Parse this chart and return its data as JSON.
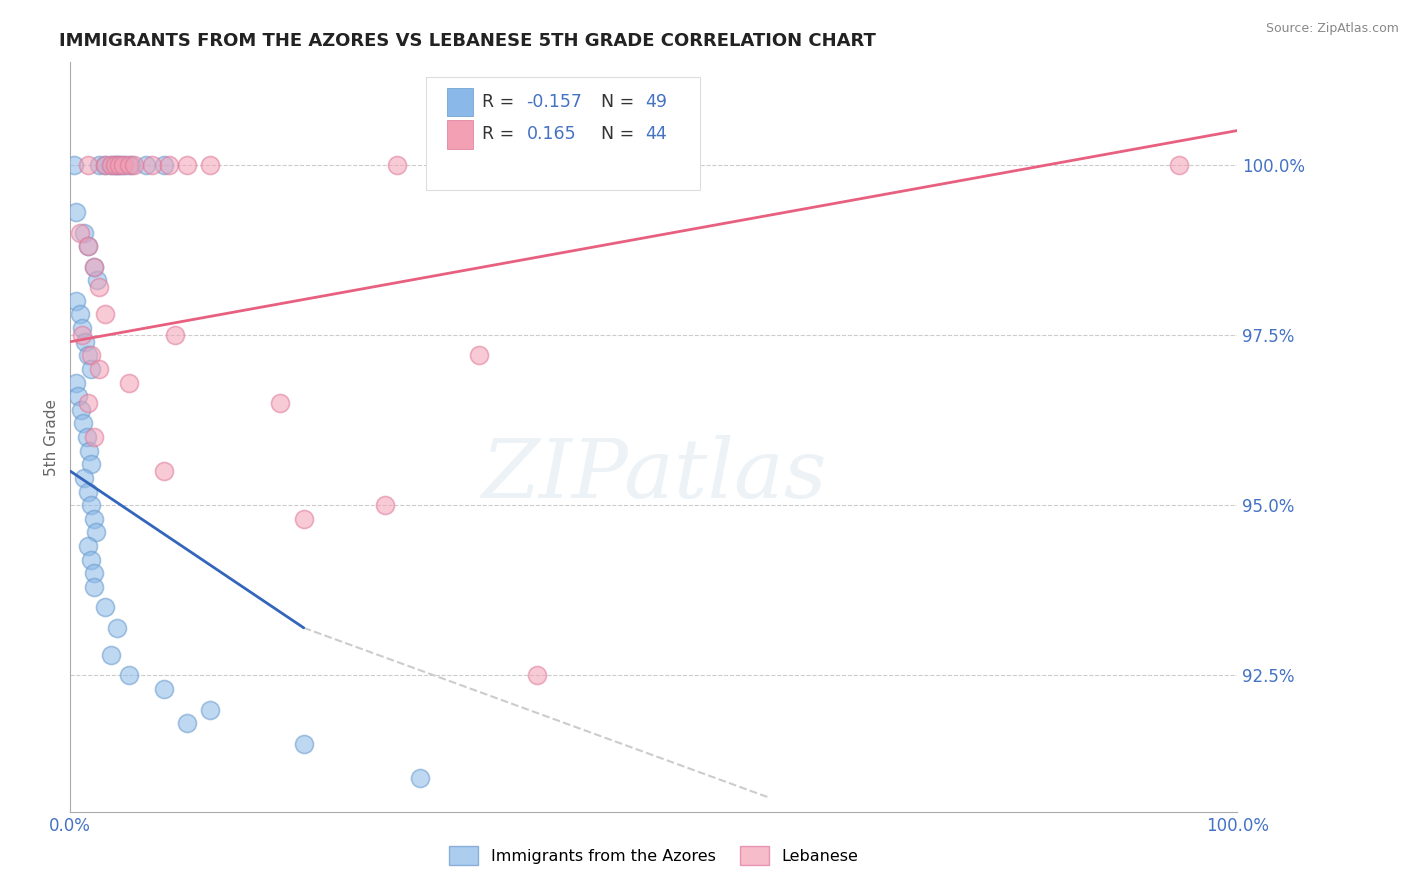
{
  "title": "IMMIGRANTS FROM THE AZORES VS LEBANESE 5TH GRADE CORRELATION CHART",
  "source": "Source: ZipAtlas.com",
  "ylabel": "5th Grade",
  "yticks": [
    92.5,
    95.0,
    97.5,
    100.0
  ],
  "xlim": [
    0.0,
    100.0
  ],
  "ylim": [
    90.5,
    101.5
  ],
  "azores_color": "#8ab8e8",
  "azores_edge_color": "#6699cc",
  "lebanese_color": "#f4a0b4",
  "lebanese_edge_color": "#dd7799",
  "blue_line_color": "#3366bb",
  "pink_line_color": "#e86080",
  "dash_line_color": "#cccccc",
  "azores_R": -0.157,
  "azores_N": 49,
  "lebanese_R": 0.165,
  "lebanese_N": 44,
  "legend_label_azores": "Immigrants from the Azores",
  "legend_label_lebanese": "Lebanese",
  "watermark_text": "ZIPatlas",
  "title_color": "#222222",
  "source_color": "#888888",
  "axis_label_color": "#4472c4",
  "ylabel_color": "#666666",
  "grid_color": "#cccccc",
  "legend_R_label_color": "#333333",
  "legend_RN_value_color": "#4472c4",
  "blue_line_x0": 0.0,
  "blue_line_y0": 95.5,
  "blue_line_x1": 20.0,
  "blue_line_y1": 93.2,
  "blue_dash_x1": 60.0,
  "blue_dash_y1": 90.7,
  "pink_line_y0": 97.4,
  "pink_line_y1": 100.5
}
